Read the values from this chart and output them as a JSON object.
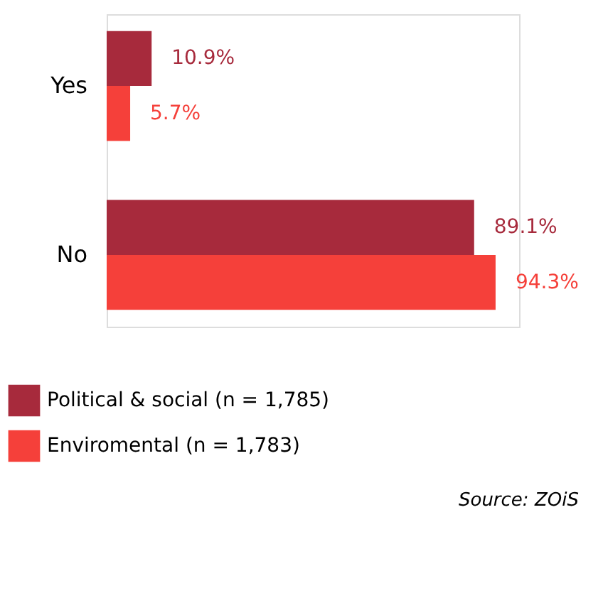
{
  "chart_data": {
    "type": "bar",
    "orientation": "horizontal",
    "categories": [
      "Yes",
      "No"
    ],
    "series": [
      {
        "name": "Political & social (n = 1,785)",
        "color": "#a72a3c",
        "values": [
          10.9,
          89.1
        ],
        "value_labels": [
          "10.9%",
          "89.1%"
        ]
      },
      {
        "name": "Enviromental (n = 1,783)",
        "color": "#f5403a",
        "values": [
          5.7,
          94.3
        ],
        "value_labels": [
          "5.7%",
          "94.3%"
        ]
      }
    ],
    "legend": "bottom left",
    "grid": false,
    "annotations": [
      "Source: ZOiS"
    ]
  }
}
